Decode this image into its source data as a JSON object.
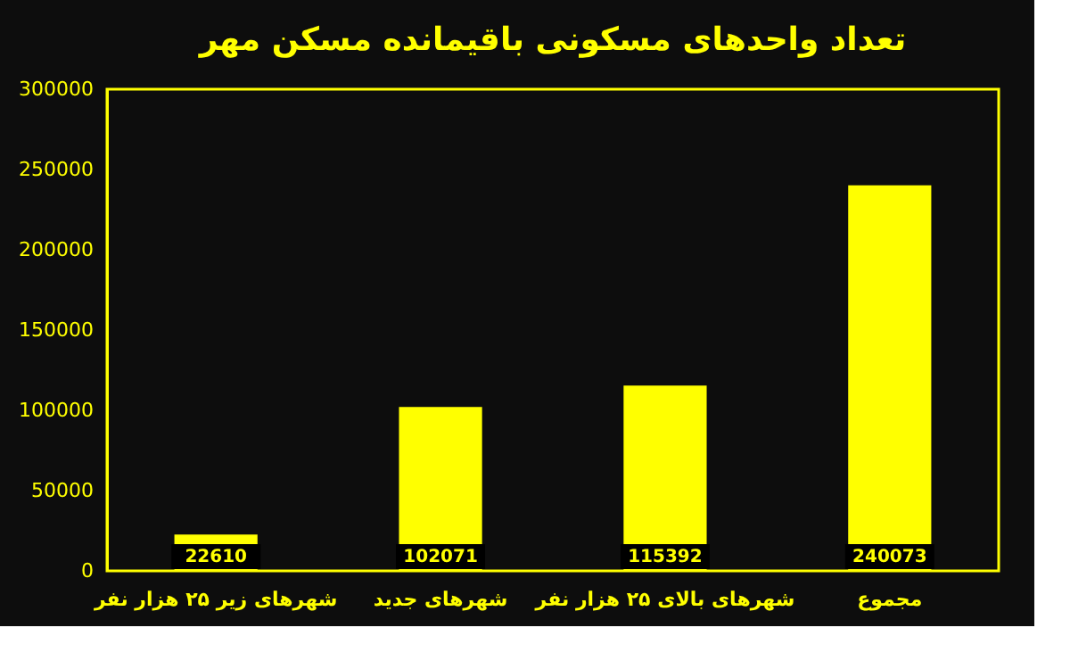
{
  "chart_data": {
    "type": "bar",
    "title": "تعداد واحدهای مسکونی باقیمانده مسکن مهر",
    "categories": [
      "شهرهای زیر ۲۵ هزار نفر",
      "شهرهای جدید",
      "شهرهای بالای ۲۵ هزار نفر",
      "مجموع"
    ],
    "values": [
      22610,
      102071,
      115392,
      240073
    ],
    "color": "#ffff00",
    "ylim": [
      0,
      300000
    ],
    "yticks": [
      0,
      50000,
      100000,
      150000,
      200000,
      250000,
      300000
    ],
    "grid": false,
    "data_labels": true
  }
}
